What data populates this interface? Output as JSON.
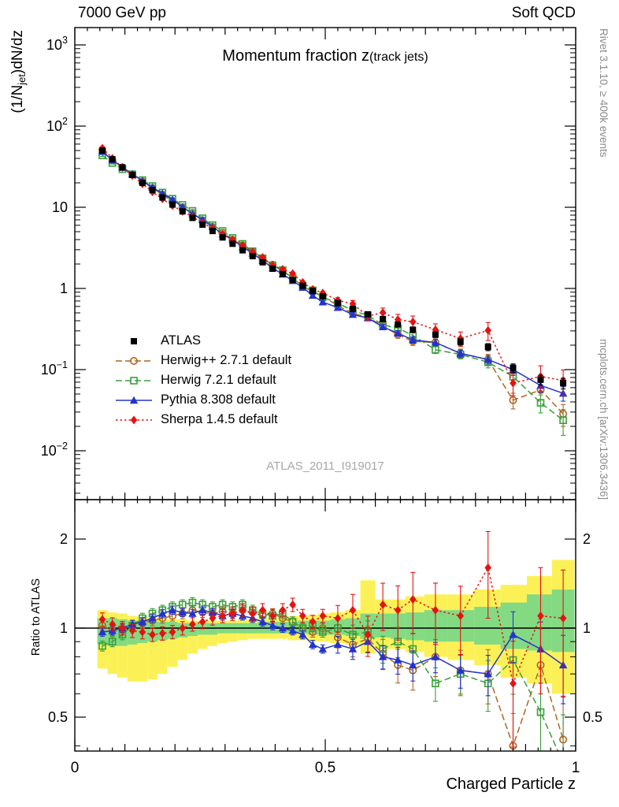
{
  "header": {
    "left": "7000 GeV pp",
    "right": "Soft QCD"
  },
  "titles": {
    "main": "Momentum fraction z",
    "paren": "(track jets)",
    "watermark": "ATLAS_2011_I919017",
    "x_axis": "Charged Particle z",
    "y_prefix": "(1/N",
    "y_sub": "jet",
    "y_suffix": ")dN/dz",
    "ratio_axis": "Ratio to ATLAS"
  },
  "side": {
    "rivet": "Rivet 3.1.10, ≥ 400k events",
    "mcplots": "mcplots.cern.ch [arXiv:1306.3436]"
  },
  "chart_data": {
    "type": "line",
    "title": "Momentum fraction z (track jets)",
    "xlabel": "Charged Particle z",
    "ylabel": "(1/Njet)dN/dz",
    "ratio_ylabel": "Ratio to ATLAS",
    "x_range": [
      0,
      1
    ],
    "x_major_ticks": [
      0,
      0.5,
      1
    ],
    "top_y_scale": "log",
    "top_y_range": [
      0.0025,
      1600
    ],
    "top_y_exponents": [
      -2,
      -1,
      0,
      1,
      2,
      3
    ],
    "ratio_y_scale": "log",
    "ratio_y_range": [
      0.384,
      2.72
    ],
    "ratio_major_ticks": [
      0.5,
      1,
      2
    ],
    "ratio_minor_ticks": [
      0.4,
      0.6,
      0.7,
      0.8,
      0.9
    ],
    "z": [
      0.055,
      0.075,
      0.095,
      0.115,
      0.135,
      0.155,
      0.175,
      0.195,
      0.215,
      0.235,
      0.255,
      0.275,
      0.295,
      0.315,
      0.335,
      0.355,
      0.375,
      0.395,
      0.415,
      0.435,
      0.455,
      0.475,
      0.495,
      0.525,
      0.555,
      0.585,
      0.615,
      0.645,
      0.675,
      0.72,
      0.77,
      0.825,
      0.875,
      0.93,
      0.975
    ],
    "atlas": {
      "id": "atlas",
      "label": "ATLAS",
      "color": "#000000",
      "marker": "square-filled",
      "line": "none",
      "values": [
        50,
        39,
        31,
        25,
        20,
        16.3,
        13.2,
        10.8,
        8.9,
        7.4,
        6.1,
        5.1,
        4.25,
        3.55,
        2.95,
        2.5,
        2.1,
        1.75,
        1.5,
        1.27,
        1.08,
        0.93,
        0.8,
        0.66,
        0.56,
        0.48,
        0.42,
        0.36,
        0.31,
        0.27,
        0.22,
        0.19,
        0.105,
        0.075,
        0.068
      ],
      "err": [
        0.025,
        0.025,
        0.025,
        0.025,
        0.025,
        0.025,
        0.025,
        0.025,
        0.025,
        0.025,
        0.025,
        0.025,
        0.025,
        0.025,
        0.025,
        0.025,
        0.025,
        0.025,
        0.025,
        0.025,
        0.025,
        0.025,
        0.025,
        0.04,
        0.05,
        0.05,
        0.06,
        0.07,
        0.08,
        0.08,
        0.09,
        0.1,
        0.12,
        0.14,
        0.15
      ]
    },
    "series": [
      {
        "id": "herwigpp",
        "label": "Herwig++ 2.7.1 default",
        "color": "#b2641e",
        "marker": "circle-open",
        "line": "dashed",
        "ratio": [
          1.02,
          0.98,
          1.0,
          1.02,
          1.04,
          1.06,
          1.08,
          1.1,
          1.12,
          1.15,
          1.13,
          1.12,
          1.14,
          1.12,
          1.15,
          1.13,
          1.1,
          1.12,
          1.08,
          1.05,
          1.0,
          0.97,
          1.0,
          0.93,
          0.88,
          0.92,
          0.82,
          0.75,
          0.72,
          0.8,
          0.72,
          0.7,
          0.4,
          0.75,
          0.42
        ],
        "err": [
          0.03,
          0.03,
          0.03,
          0.03,
          0.03,
          0.03,
          0.03,
          0.03,
          0.03,
          0.03,
          0.03,
          0.03,
          0.03,
          0.03,
          0.03,
          0.03,
          0.03,
          0.03,
          0.03,
          0.03,
          0.03,
          0.03,
          0.03,
          0.06,
          0.07,
          0.08,
          0.09,
          0.1,
          0.11,
          0.11,
          0.13,
          0.16,
          0.22,
          0.25,
          0.3
        ]
      },
      {
        "id": "herwig7",
        "label": "Herwig 7.2.1 default",
        "color": "#3b9e3b",
        "marker": "square-open",
        "line": "dashed",
        "ratio": [
          0.87,
          0.9,
          0.95,
          1.02,
          1.08,
          1.12,
          1.15,
          1.18,
          1.2,
          1.22,
          1.2,
          1.18,
          1.2,
          1.18,
          1.2,
          1.15,
          1.12,
          1.1,
          1.12,
          1.05,
          1.0,
          1.02,
          0.97,
          1.0,
          0.95,
          0.97,
          0.85,
          0.9,
          0.85,
          0.65,
          0.7,
          0.65,
          0.78,
          0.52,
          0.35
        ],
        "err": [
          0.03,
          0.03,
          0.03,
          0.03,
          0.03,
          0.03,
          0.03,
          0.03,
          0.03,
          0.03,
          0.03,
          0.03,
          0.03,
          0.03,
          0.03,
          0.03,
          0.03,
          0.03,
          0.03,
          0.03,
          0.03,
          0.03,
          0.03,
          0.05,
          0.06,
          0.07,
          0.08,
          0.09,
          0.1,
          0.1,
          0.12,
          0.15,
          0.18,
          0.25,
          0.35
        ]
      },
      {
        "id": "pythia8",
        "label": "Pythia 8.308 default",
        "color": "#2333cc",
        "marker": "triangle-filled",
        "line": "solid",
        "ratio": [
          0.97,
          0.98,
          1.0,
          1.03,
          1.05,
          1.08,
          1.12,
          1.15,
          1.13,
          1.12,
          1.15,
          1.13,
          1.1,
          1.12,
          1.1,
          1.08,
          1.05,
          1.02,
          1.0,
          0.98,
          0.95,
          0.88,
          0.85,
          0.88,
          0.85,
          0.9,
          0.8,
          0.78,
          0.75,
          0.8,
          0.72,
          0.7,
          0.95,
          0.85,
          0.75
        ],
        "err": [
          0.025,
          0.025,
          0.025,
          0.025,
          0.025,
          0.025,
          0.025,
          0.025,
          0.025,
          0.025,
          0.025,
          0.025,
          0.025,
          0.025,
          0.025,
          0.025,
          0.025,
          0.025,
          0.025,
          0.025,
          0.025,
          0.025,
          0.025,
          0.05,
          0.06,
          0.06,
          0.07,
          0.08,
          0.09,
          0.09,
          0.1,
          0.12,
          0.15,
          0.18,
          0.2
        ]
      },
      {
        "id": "sherpa",
        "label": "Sherpa 1.4.5 default",
        "color": "#e51212",
        "marker": "diamond-filled",
        "line": "dotted",
        "ratio": [
          1.07,
          1.03,
          1.0,
          0.98,
          0.97,
          0.95,
          0.96,
          0.97,
          1.0,
          1.03,
          1.05,
          1.08,
          1.1,
          1.12,
          1.15,
          1.12,
          1.15,
          1.1,
          1.15,
          1.2,
          1.1,
          1.05,
          1.1,
          1.08,
          1.15,
          0.95,
          1.2,
          1.15,
          1.25,
          1.15,
          1.1,
          1.6,
          0.65,
          1.1,
          1.08
        ],
        "err": [
          0.04,
          0.04,
          0.04,
          0.04,
          0.04,
          0.04,
          0.04,
          0.04,
          0.04,
          0.04,
          0.04,
          0.04,
          0.04,
          0.04,
          0.04,
          0.04,
          0.04,
          0.04,
          0.04,
          0.04,
          0.04,
          0.04,
          0.04,
          0.08,
          0.1,
          0.12,
          0.14,
          0.16,
          0.18,
          0.18,
          0.2,
          0.25,
          0.3,
          0.35,
          0.35
        ]
      }
    ],
    "bands": {
      "yellow": {
        "color": "#fbf157",
        "lo": [
          0.73,
          0.7,
          0.68,
          0.66,
          0.66,
          0.67,
          0.7,
          0.74,
          0.78,
          0.82,
          0.85,
          0.87,
          0.89,
          0.9,
          0.91,
          0.92,
          0.92,
          0.92,
          0.92,
          0.91,
          0.91,
          0.9,
          0.9,
          0.89,
          0.88,
          0.82,
          0.85,
          0.85,
          0.83,
          0.8,
          0.78,
          0.75,
          0.68,
          0.65,
          0.6
        ],
        "hi": [
          1.15,
          1.13,
          1.12,
          1.1,
          1.09,
          1.08,
          1.08,
          1.07,
          1.07,
          1.06,
          1.06,
          1.06,
          1.06,
          1.06,
          1.07,
          1.07,
          1.08,
          1.08,
          1.09,
          1.1,
          1.1,
          1.11,
          1.12,
          1.13,
          1.15,
          1.45,
          1.25,
          1.25,
          1.28,
          1.3,
          1.3,
          1.35,
          1.4,
          1.5,
          1.7
        ]
      },
      "green": {
        "color": "#83da82",
        "lo": [
          0.88,
          0.87,
          0.87,
          0.88,
          0.89,
          0.9,
          0.91,
          0.92,
          0.93,
          0.94,
          0.95,
          0.95,
          0.96,
          0.96,
          0.96,
          0.96,
          0.96,
          0.96,
          0.96,
          0.96,
          0.96,
          0.95,
          0.95,
          0.95,
          0.94,
          0.92,
          0.93,
          0.92,
          0.91,
          0.9,
          0.9,
          0.88,
          0.85,
          0.84,
          0.83
        ],
        "hi": [
          1.08,
          1.08,
          1.07,
          1.06,
          1.06,
          1.05,
          1.05,
          1.05,
          1.04,
          1.04,
          1.04,
          1.04,
          1.04,
          1.04,
          1.04,
          1.04,
          1.05,
          1.05,
          1.05,
          1.05,
          1.06,
          1.06,
          1.06,
          1.07,
          1.08,
          1.12,
          1.12,
          1.12,
          1.13,
          1.15,
          1.15,
          1.18,
          1.22,
          1.3,
          1.35
        ]
      }
    }
  }
}
